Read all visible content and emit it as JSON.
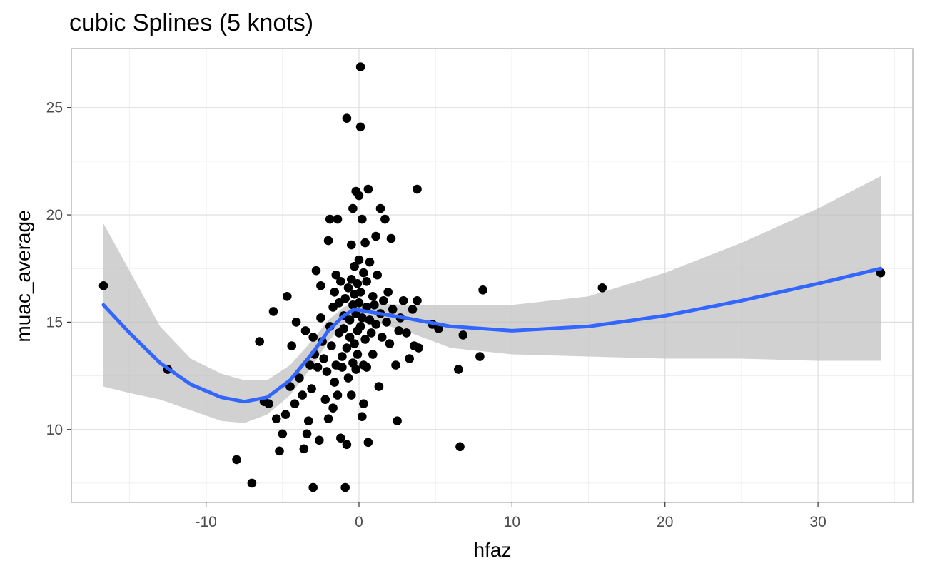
{
  "chart_data": {
    "type": "scatter",
    "title": "cubic Splines (5 knots)",
    "xlabel": "hfaz",
    "ylabel": "muac_average",
    "xlim": [
      -18.8,
      36.2
    ],
    "ylim": [
      6.6,
      27.75
    ],
    "x_ticks": [
      -10,
      0,
      10,
      20,
      30
    ],
    "x_tick_labels": [
      "-10",
      "0",
      "10",
      "20",
      "30"
    ],
    "x_minor_ticks": [
      -15,
      -5,
      5,
      15,
      25,
      35
    ],
    "y_ticks": [
      10,
      15,
      20,
      25
    ],
    "y_tick_labels": [
      "10",
      "15",
      "20",
      "25"
    ],
    "y_minor_ticks": [
      7.5,
      12.5,
      17.5,
      22.5,
      27.5
    ],
    "grid": true,
    "legend": "none",
    "colors": {
      "points": "#000000",
      "fit_line": "#3366FF",
      "ribbon": "#bfbfbf",
      "panel_border": "#b3b3b3",
      "grid_major": "#dedede",
      "grid_minor": "#efefef"
    },
    "points": [
      [
        -16.7,
        16.7
      ],
      [
        -12.5,
        12.8
      ],
      [
        -8.0,
        8.6
      ],
      [
        -7.0,
        7.5
      ],
      [
        -6.5,
        14.1
      ],
      [
        -6.2,
        11.3
      ],
      [
        -5.9,
        11.2
      ],
      [
        -5.6,
        15.5
      ],
      [
        -5.4,
        10.5
      ],
      [
        -5.2,
        9.0
      ],
      [
        -5.0,
        9.8
      ],
      [
        -4.8,
        10.7
      ],
      [
        -4.7,
        16.2
      ],
      [
        -4.5,
        12.0
      ],
      [
        -4.4,
        13.9
      ],
      [
        -4.2,
        11.2
      ],
      [
        -4.1,
        15.0
      ],
      [
        -3.9,
        12.4
      ],
      [
        -3.7,
        11.6
      ],
      [
        -3.6,
        9.1
      ],
      [
        -3.5,
        14.6
      ],
      [
        -3.4,
        9.8
      ],
      [
        -3.3,
        10.4
      ],
      [
        -3.2,
        13.0
      ],
      [
        -3.1,
        11.9
      ],
      [
        -3.0,
        14.3
      ],
      [
        -3.0,
        7.3
      ],
      [
        -2.9,
        13.5
      ],
      [
        -2.8,
        17.4
      ],
      [
        -2.7,
        12.9
      ],
      [
        -2.6,
        9.5
      ],
      [
        -2.5,
        16.7
      ],
      [
        -2.5,
        15.2
      ],
      [
        -2.4,
        14.1
      ],
      [
        -2.3,
        13.3
      ],
      [
        -2.2,
        11.4
      ],
      [
        -2.1,
        12.7
      ],
      [
        -2.0,
        18.8
      ],
      [
        -2.0,
        10.5
      ],
      [
        -1.9,
        19.8
      ],
      [
        -1.9,
        14.8
      ],
      [
        -1.8,
        13.9
      ],
      [
        -1.7,
        15.7
      ],
      [
        -1.7,
        11.0
      ],
      [
        -1.6,
        16.4
      ],
      [
        -1.6,
        12.2
      ],
      [
        -1.5,
        17.2
      ],
      [
        -1.5,
        13.0
      ],
      [
        -1.4,
        19.8
      ],
      [
        -1.4,
        11.6
      ],
      [
        -1.3,
        14.5
      ],
      [
        -1.3,
        15.9
      ],
      [
        -1.2,
        16.9
      ],
      [
        -1.2,
        9.6
      ],
      [
        -1.1,
        13.4
      ],
      [
        -1.1,
        12.9
      ],
      [
        -1.0,
        14.7
      ],
      [
        -1.0,
        15.3
      ],
      [
        -0.9,
        16.1
      ],
      [
        -0.9,
        7.3
      ],
      [
        -0.8,
        24.5
      ],
      [
        -0.8,
        9.3
      ],
      [
        -0.8,
        13.8
      ],
      [
        -0.7,
        16.6
      ],
      [
        -0.7,
        12.4
      ],
      [
        -0.6,
        15.1
      ],
      [
        -0.6,
        14.3
      ],
      [
        -0.5,
        17.0
      ],
      [
        -0.5,
        18.6
      ],
      [
        -0.5,
        11.6
      ],
      [
        -0.4,
        15.8
      ],
      [
        -0.4,
        13.1
      ],
      [
        -0.4,
        20.3
      ],
      [
        -0.3,
        16.3
      ],
      [
        -0.3,
        14.0
      ],
      [
        -0.3,
        17.6
      ],
      [
        -0.2,
        21.1
      ],
      [
        -0.2,
        15.4
      ],
      [
        -0.2,
        12.8
      ],
      [
        -0.1,
        16.8
      ],
      [
        -0.1,
        14.6
      ],
      [
        -0.1,
        13.5
      ],
      [
        0.0,
        20.9
      ],
      [
        0.0,
        15.9
      ],
      [
        0.0,
        17.9
      ],
      [
        0.1,
        26.9
      ],
      [
        0.1,
        24.1
      ],
      [
        0.1,
        14.8
      ],
      [
        0.1,
        16.4
      ],
      [
        0.2,
        10.6
      ],
      [
        0.2,
        19.8
      ],
      [
        0.2,
        15.2
      ],
      [
        0.3,
        13.0
      ],
      [
        0.3,
        17.3
      ],
      [
        0.3,
        11.2
      ],
      [
        0.4,
        18.7
      ],
      [
        0.4,
        14.2
      ],
      [
        0.5,
        15.7
      ],
      [
        0.5,
        16.9
      ],
      [
        0.5,
        12.9
      ],
      [
        0.6,
        9.4
      ],
      [
        0.6,
        21.2
      ],
      [
        0.7,
        15.1
      ],
      [
        0.7,
        17.8
      ],
      [
        0.8,
        14.5
      ],
      [
        0.9,
        16.2
      ],
      [
        0.9,
        13.5
      ],
      [
        1.0,
        15.8
      ],
      [
        1.1,
        19.0
      ],
      [
        1.1,
        14.9
      ],
      [
        1.2,
        17.2
      ],
      [
        1.3,
        12.0
      ],
      [
        1.4,
        15.4
      ],
      [
        1.4,
        20.3
      ],
      [
        1.5,
        14.3
      ],
      [
        1.6,
        16.0
      ],
      [
        1.7,
        19.8
      ],
      [
        1.8,
        15.0
      ],
      [
        1.9,
        16.4
      ],
      [
        2.0,
        14.0
      ],
      [
        2.1,
        18.9
      ],
      [
        2.2,
        15.6
      ],
      [
        2.4,
        13.0
      ],
      [
        2.5,
        10.4
      ],
      [
        2.6,
        14.6
      ],
      [
        2.7,
        15.2
      ],
      [
        2.9,
        16.0
      ],
      [
        3.1,
        14.5
      ],
      [
        3.3,
        13.3
      ],
      [
        3.5,
        15.6
      ],
      [
        3.6,
        13.9
      ],
      [
        3.8,
        16.0
      ],
      [
        3.8,
        21.2
      ],
      [
        3.9,
        13.8
      ],
      [
        4.8,
        14.9
      ],
      [
        5.2,
        14.7
      ],
      [
        6.5,
        12.8
      ],
      [
        6.6,
        9.2
      ],
      [
        6.8,
        14.4
      ],
      [
        7.9,
        13.4
      ],
      [
        8.1,
        16.5
      ],
      [
        15.9,
        16.6
      ],
      [
        34.1,
        17.3
      ]
    ],
    "fit_line": {
      "x": [
        -16.7,
        -15,
        -13,
        -11,
        -9,
        -7.5,
        -6,
        -4.5,
        -3,
        -2,
        -1,
        -0.3,
        0.5,
        3,
        6,
        10,
        15,
        20,
        25,
        30,
        34.1
      ],
      "y": [
        15.8,
        14.5,
        13.1,
        12.1,
        11.5,
        11.3,
        11.5,
        12.3,
        13.6,
        14.6,
        15.3,
        15.6,
        15.5,
        15.2,
        14.8,
        14.6,
        14.8,
        15.3,
        16.0,
        16.8,
        17.5
      ]
    },
    "ribbon": {
      "x": [
        -16.7,
        -15,
        -13,
        -11,
        -9,
        -7.5,
        -6,
        -4.5,
        -3,
        -2,
        -1,
        -0.3,
        0.5,
        3,
        6,
        10,
        15,
        20,
        25,
        30,
        34.1
      ],
      "lower": [
        12.0,
        11.7,
        11.4,
        10.9,
        10.4,
        10.3,
        10.7,
        11.6,
        13.0,
        14.1,
        14.9,
        15.3,
        15.1,
        14.6,
        13.8,
        13.5,
        13.4,
        13.3,
        13.3,
        13.2,
        13.2
      ],
      "upper": [
        19.6,
        17.4,
        14.8,
        13.3,
        12.6,
        12.3,
        12.3,
        13.0,
        14.2,
        15.1,
        15.7,
        15.9,
        15.9,
        15.8,
        15.8,
        15.8,
        16.2,
        17.3,
        18.7,
        20.3,
        21.8
      ]
    }
  }
}
